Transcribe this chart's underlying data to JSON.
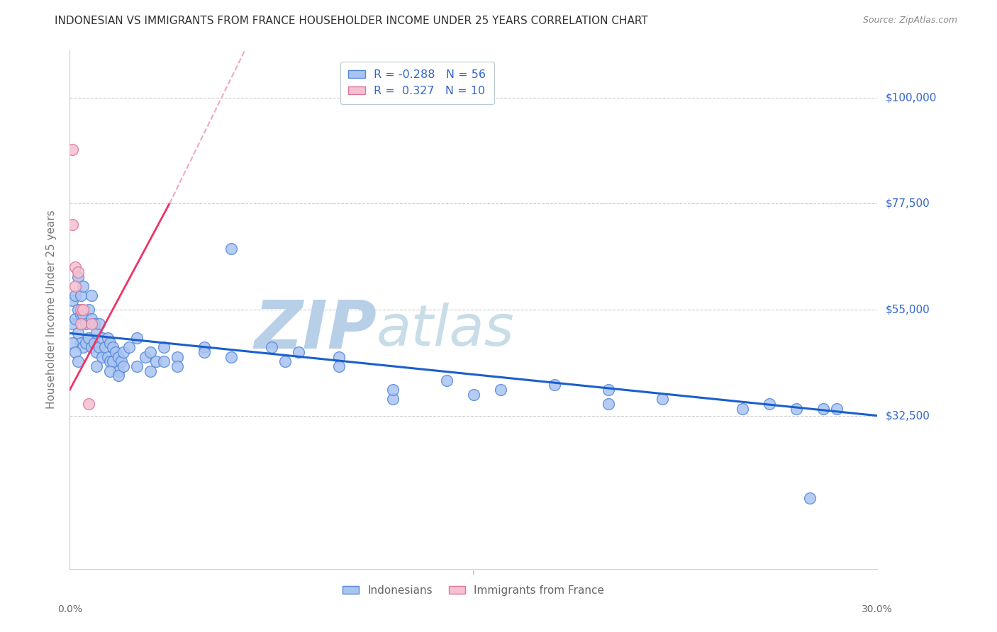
{
  "title": "INDONESIAN VS IMMIGRANTS FROM FRANCE HOUSEHOLDER INCOME UNDER 25 YEARS CORRELATION CHART",
  "source": "Source: ZipAtlas.com",
  "ylabel": "Householder Income Under 25 years",
  "xlim": [
    0.0,
    0.3
  ],
  "ylim": [
    0,
    110000
  ],
  "yticks": [
    32500,
    55000,
    77500,
    100000
  ],
  "ytick_labels": [
    "$32,500",
    "$55,000",
    "$77,500",
    "$100,000"
  ],
  "grid_color": "#cccccc",
  "background_color": "#ffffff",
  "watermark_zip": "ZIP",
  "watermark_atlas": "atlas",
  "watermark_color": "#c8ddf0",
  "indonesian_color": "#aac4f0",
  "indonesian_edge_color": "#5588dd",
  "france_color": "#f5c0d0",
  "france_edge_color": "#dd7799",
  "trend_blue": "#1a5fcc",
  "trend_pink": "#ee3366",
  "trend_pink_dashed": "#f0aabb",
  "legend_R1": "-0.288",
  "legend_N1": "56",
  "legend_R2": "0.327",
  "legend_N2": "10",
  "indonesian_x": [
    0.001,
    0.001,
    0.002,
    0.002,
    0.003,
    0.003,
    0.003,
    0.004,
    0.004,
    0.004,
    0.005,
    0.005,
    0.005,
    0.006,
    0.006,
    0.007,
    0.007,
    0.008,
    0.008,
    0.008,
    0.009,
    0.009,
    0.01,
    0.01,
    0.011,
    0.011,
    0.012,
    0.012,
    0.013,
    0.014,
    0.014,
    0.015,
    0.015,
    0.016,
    0.016,
    0.017,
    0.018,
    0.018,
    0.019,
    0.02,
    0.022,
    0.025,
    0.028,
    0.03,
    0.032,
    0.035,
    0.04,
    0.05,
    0.06,
    0.075,
    0.085,
    0.1,
    0.12,
    0.15,
    0.2,
    0.28
  ],
  "indonesian_y": [
    57000,
    52000,
    58000,
    53000,
    62000,
    55000,
    50000,
    58000,
    54000,
    48000,
    60000,
    54000,
    47000,
    52000,
    48000,
    55000,
    49000,
    58000,
    53000,
    47000,
    52000,
    48000,
    50000,
    46000,
    52000,
    47000,
    49000,
    45000,
    47000,
    49000,
    45000,
    48000,
    44000,
    47000,
    44000,
    46000,
    45000,
    42000,
    44000,
    46000,
    47000,
    49000,
    45000,
    46000,
    44000,
    47000,
    45000,
    47000,
    68000,
    47000,
    46000,
    45000,
    36000,
    37000,
    38000,
    34000
  ],
  "indonesian_x2": [
    0.001,
    0.002,
    0.003,
    0.01,
    0.015,
    0.018,
    0.02,
    0.025,
    0.03,
    0.035,
    0.04,
    0.05,
    0.06,
    0.08,
    0.1,
    0.12,
    0.14,
    0.16,
    0.18,
    0.2,
    0.22,
    0.25,
    0.26,
    0.27,
    0.275,
    0.285
  ],
  "indonesian_y2": [
    48000,
    46000,
    44000,
    43000,
    42000,
    41000,
    43000,
    43000,
    42000,
    44000,
    43000,
    46000,
    45000,
    44000,
    43000,
    38000,
    40000,
    38000,
    39000,
    35000,
    36000,
    34000,
    35000,
    34000,
    15000,
    34000
  ],
  "france_x": [
    0.001,
    0.001,
    0.002,
    0.002,
    0.003,
    0.004,
    0.004,
    0.005,
    0.007,
    0.008
  ],
  "france_y": [
    89000,
    73000,
    64000,
    60000,
    63000,
    55000,
    52000,
    55000,
    35000,
    52000
  ]
}
